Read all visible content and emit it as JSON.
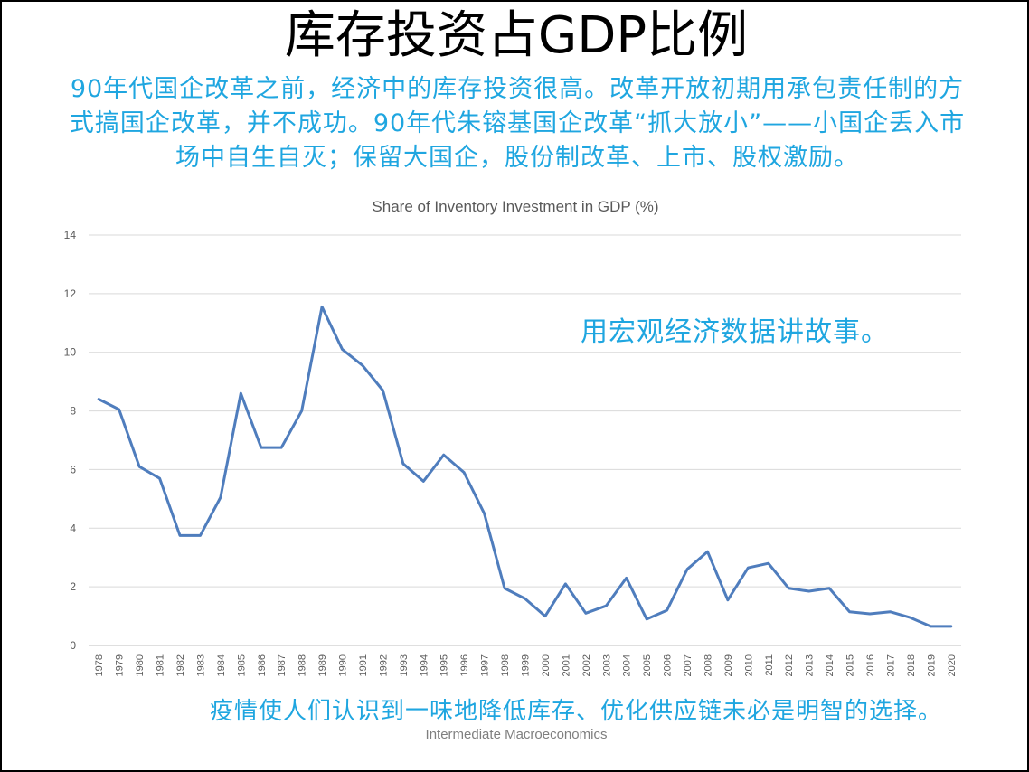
{
  "slide": {
    "title": "库存投资占GDP比例",
    "intro": "90年代国企改革之前，经济中的库存投资很高。改革开放初期用承包责任制的方式搞国企改革，并不成功。90年代朱镕基国企改革“抓大放小”——小国企丢入市场中自生自灭；保留大国企，股份制改革、上市、股权激励。",
    "tagline": "用宏观经济数据讲故事。",
    "footer_note": "疫情使人们认识到一味地降低库存、优化供应链未必是明智的选择。",
    "course": "Intermediate Macroeconomics"
  },
  "chart_data": {
    "type": "line",
    "title": "Share of Inventory Investment in GDP (%)",
    "xlabel": "",
    "ylabel": "",
    "ylim": [
      0,
      14
    ],
    "yticks": [
      0,
      2,
      4,
      6,
      8,
      10,
      12,
      14
    ],
    "grid": true,
    "x": [
      "1978",
      "1979",
      "1980",
      "1981",
      "1982",
      "1983",
      "1984",
      "1985",
      "1986",
      "1987",
      "1988",
      "1989",
      "1990",
      "1991",
      "1992",
      "1993",
      "1994",
      "1995",
      "1996",
      "1997",
      "1998",
      "1999",
      "2000",
      "2001",
      "2002",
      "2003",
      "2004",
      "2005",
      "2006",
      "2007",
      "2008",
      "2009",
      "2010",
      "2011",
      "2012",
      "2013",
      "2014",
      "2015",
      "2016",
      "2017",
      "2018",
      "2019",
      "2020"
    ],
    "series": [
      {
        "color": "#4f7dbd",
        "values": [
          8.4,
          8.05,
          6.1,
          5.7,
          3.75,
          3.75,
          5.05,
          8.6,
          6.75,
          6.75,
          8.0,
          11.55,
          10.1,
          9.55,
          8.7,
          6.2,
          5.6,
          6.5,
          5.9,
          4.5,
          1.95,
          1.6,
          1.0,
          2.1,
          1.1,
          1.35,
          2.3,
          0.9,
          1.2,
          2.6,
          3.2,
          1.55,
          2.65,
          2.8,
          1.95,
          1.85,
          1.95,
          1.15,
          1.08,
          1.15,
          0.95,
          0.65,
          0.65
        ]
      }
    ]
  }
}
